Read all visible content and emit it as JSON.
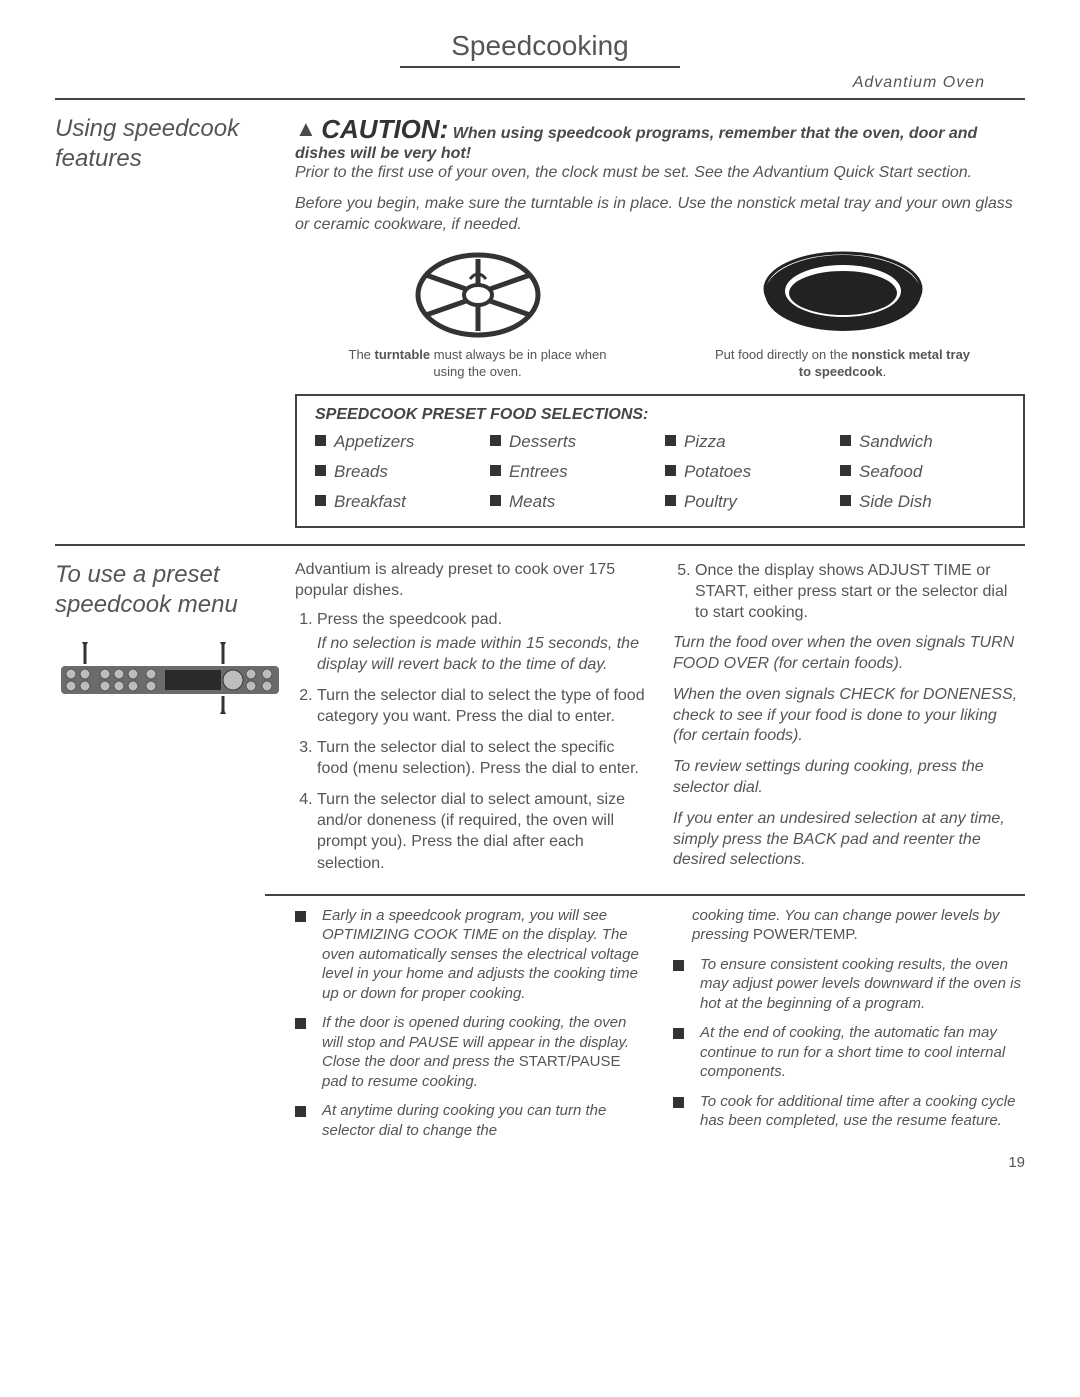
{
  "header": {
    "title": "Speedcooking",
    "sub": "Advantium Oven"
  },
  "section1": {
    "sideTitle": "Using speedcook features",
    "caution": "CAUTION:",
    "cautionTail": " When using speedcook programs, remember that the oven, door and dishes will be very hot!",
    "p1": "Prior to the first use of your oven, the clock must be set. See the Advantium Quick Start section.",
    "p2": "Before you begin, make sure the turntable is in place. Use the nonstick metal tray and your own glass or ceramic cookware, if needed.",
    "cap1a": "The ",
    "cap1b": "turntable",
    "cap1c": " must always be in place when using the oven.",
    "cap2a": "Put food directly on the ",
    "cap2b": "nonstick metal tray to speedcook",
    "cap2c": ".",
    "presetTitle": "SPEEDCOOK PRESET FOOD SELECTIONS:",
    "presets": [
      "Appetizers",
      "Desserts",
      "Pizza",
      "Sandwich",
      "Breads",
      "Entrees",
      "Potatoes",
      "Seafood",
      "Breakfast",
      "Meats",
      "Poultry",
      "Side Dish"
    ]
  },
  "section2": {
    "sideTitle": "To use a preset speedcook menu",
    "intro": "Advantium is already preset to cook over 175 popular dishes.",
    "step1": "Press the speedcook pad.",
    "step1note": "If no selection is made within 15 seconds, the display will revert back to the time of day.",
    "step2": "Turn the selector dial to select the type of food category you want. Press the dial to enter.",
    "step3": "Turn the selector dial to select the specific food (menu selection). Press the dial to enter.",
    "step4": "Turn the selector dial to select amount, size and/or doneness (if required, the oven will prompt you). Press the dial after each selection.",
    "step5": "Once the display shows ADJUST TIME or START, either press start or the selector dial to start cooking.",
    "r1": "Turn the food over when the oven signals TURN FOOD OVER (for certain foods).",
    "r2": "When the oven signals CHECK for DONENESS, check to see if your food is done to your liking (for certain foods).",
    "r3": "To review settings during cooking, press the selector dial.",
    "r4": "If you enter an undesired selection at any time, simply press the BACK pad and reenter the desired selections."
  },
  "section3": {
    "b1": "Early in a speedcook program, you will see OPTIMIZING COOK TIME on the display. The oven automatically senses the electrical voltage level in your home and adjusts the cooking time up or down for proper cooking.",
    "b2a": "If the door is opened during cooking, the oven will stop and PAUSE will appear in the display. Close the door and press the ",
    "b2b": "START/PAUSE",
    "b2c": " pad to resume cooking.",
    "b3": "At anytime during cooking you can turn the selector dial to change the",
    "r0a": "cooking time. You can change power levels by pressing ",
    "r0b": "POWER/TEMP.",
    "r1": "To ensure consistent cooking results, the oven may adjust power levels downward if the oven is hot at the beginning of a program.",
    "r2": "At the end of cooking, the automatic fan may continue to run for a short time to cool internal components.",
    "r3": "To cook for additional time after a cooking cycle has been completed, use the resume feature."
  },
  "pageNumber": "19",
  "colors": {
    "text": "#555555",
    "rule": "#444444",
    "square": "#333333"
  }
}
